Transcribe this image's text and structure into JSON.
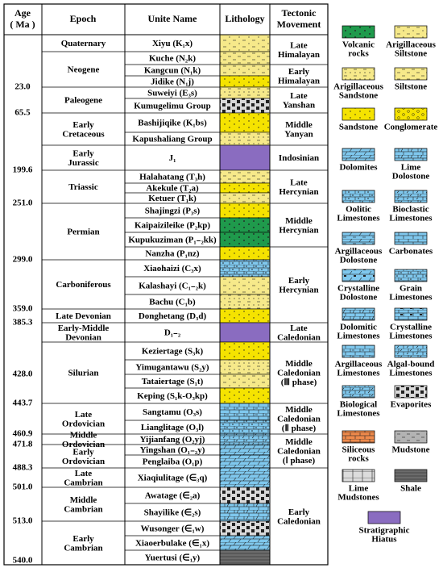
{
  "header": {
    "age": [
      "Age",
      "( Ma )"
    ],
    "epoch": "Epoch",
    "unit": "Unite Name",
    "lithology": "Lithology",
    "tectonic": [
      "Tectonic",
      "Movement"
    ]
  },
  "units": [
    {
      "name": "Xiyu (K₁x)",
      "lithology": 1
    },
    {
      "name": "Kuche (N₂k)",
      "lithology": 3
    },
    {
      "name": "Kangcun (N₁k)",
      "lithology": 1
    },
    {
      "name": "Jidike (N₁j)",
      "lithology": 4
    },
    {
      "name": "Suweiyi (E₃s)",
      "lithology": 2
    },
    {
      "name": "Kumugelimu Group",
      "lithology": 19
    },
    {
      "name": "Bashijiqike (K₁bs)",
      "lithology": 4
    },
    {
      "name": "Kapushaliang Group",
      "lithology": 2
    },
    {
      "name": "J₁",
      "lithology": 24
    },
    {
      "name": "Halahatang (T₃h)",
      "lithology": 3
    },
    {
      "name": "Akekule (T₂a)",
      "lithology": 4
    },
    {
      "name": "Ketuer (T₁k)",
      "lithology": 1
    },
    {
      "name": "Shajingzi (P₃s)",
      "lithology": 4
    },
    {
      "name": "Kaipaizileike (P₂kp)",
      "lithology": 0
    },
    {
      "name": "Kupukuziman (P₁₋₂kk)",
      "lithology": 0
    },
    {
      "name": "Nanzha (P₁nz)",
      "lithology": 4
    },
    {
      "name": "Xiaohaizi (C₃x)",
      "lithology": 8
    },
    {
      "name": "Kalashayi (C₁₋₂k)",
      "lithology": 1
    },
    {
      "name": "Bachu (C₁b)",
      "lithology": 2
    },
    {
      "name": "Donghetang (D₃d)",
      "lithology": 4
    },
    {
      "name": "D₁₋₂",
      "lithology": 24
    },
    {
      "name": "Keziertage (S₃k)",
      "lithology": 4
    },
    {
      "name": "Yimugantawu (S₂y)",
      "lithology": 2
    },
    {
      "name": "Tataiertage (S₁t)",
      "lithology": 1
    },
    {
      "name": "Keping (S₁k-O₃kp)",
      "lithology": 4
    },
    {
      "name": "Sangtamu (O₃s)",
      "lithology": 16
    },
    {
      "name": "Lianglitage (O₃l)",
      "lithology": 8
    },
    {
      "name": "Yijianfang (O₂yj)",
      "lithology": 9
    },
    {
      "name": "Yingshan (O₁₋₂y)",
      "lithology": 6
    },
    {
      "name": "Penglaiba (O₁p)",
      "lithology": 6
    },
    {
      "name": "Xiaqiulitage (∈₃q)",
      "lithology": 6
    },
    {
      "name": "Awatage (∈₂a)",
      "lithology": 19
    },
    {
      "name": "Shayilike (∈₂s)",
      "lithology": 7
    },
    {
      "name": "Wusonger (∈₁w)",
      "lithology": 19
    },
    {
      "name": "Xiaoerbulake (∈₁x)",
      "lithology": 6
    },
    {
      "name": "Yuertusi (∈₁y)",
      "lithology": 23
    }
  ],
  "epochs": [
    {
      "lines": [
        "Quaternary"
      ],
      "from": 0,
      "to": 0
    },
    {
      "lines": [
        "Neogene"
      ],
      "from": 1,
      "to": 3
    },
    {
      "lines": [
        "Paleogene"
      ],
      "from": 4,
      "to": 5
    },
    {
      "lines": [
        "Early",
        "Cretaceous"
      ],
      "from": 6,
      "to": 7
    },
    {
      "lines": [
        "Early",
        "Jurassic"
      ],
      "from": 8,
      "to": 8
    },
    {
      "lines": [
        "Triassic"
      ],
      "from": 9,
      "to": 11
    },
    {
      "lines": [
        "Permian"
      ],
      "from": 12,
      "to": 15
    },
    {
      "lines": [
        "Carboniferous"
      ],
      "from": 16,
      "to": 18
    },
    {
      "lines": [
        "Late Devonian"
      ],
      "from": 19,
      "to": 19
    },
    {
      "lines": [
        "Early-Middle",
        "Devonian"
      ],
      "from": 20,
      "to": 20
    },
    {
      "lines": [
        "Silurian"
      ],
      "from": 21,
      "to": 24
    },
    {
      "lines": [
        "Late",
        "Ordovician"
      ],
      "from": 25,
      "to": 26
    },
    {
      "lines": [
        "Middle",
        "Ordovician"
      ],
      "from": 27,
      "to": 27
    },
    {
      "lines": [
        "Early",
        "Ordovician"
      ],
      "from": 28,
      "to": 29
    },
    {
      "lines": [
        "Late",
        "Cambrian"
      ],
      "from": 30,
      "to": 30
    },
    {
      "lines": [
        "Middle",
        "Cambrian"
      ],
      "from": 31,
      "to": 32
    },
    {
      "lines": [
        "Early",
        "Cambrian"
      ],
      "from": 33,
      "to": 35
    }
  ],
  "tectonics": [
    {
      "lines": [
        "Late",
        "Himalayan"
      ],
      "from": 0,
      "to": 1
    },
    {
      "lines": [
        "Early",
        "Himalayan"
      ],
      "from": 2,
      "to": 3
    },
    {
      "lines": [
        "Late",
        "Yanshan"
      ],
      "from": 4,
      "to": 5
    },
    {
      "lines": [
        "Middle",
        "Yanyan"
      ],
      "from": 6,
      "to": 7
    },
    {
      "lines": [
        "Indosinian"
      ],
      "from": 8,
      "to": 8
    },
    {
      "lines": [
        "Late",
        "Hercynian"
      ],
      "from": 9,
      "to": 11
    },
    {
      "lines": [
        "Middle",
        "Hercynian"
      ],
      "from": 12,
      "to": 14
    },
    {
      "lines": [
        "Early",
        "Hercynian"
      ],
      "from": 15,
      "to": 19
    },
    {
      "lines": [
        "Late",
        "Caledonian"
      ],
      "from": 20,
      "to": 20
    },
    {
      "lines": [
        "Middle",
        "Caledonian",
        "(Ⅲ phase)"
      ],
      "from": 21,
      "to": 24
    },
    {
      "lines": [
        "Middle",
        "Caledonian",
        "(Ⅱ phase)"
      ],
      "from": 25,
      "to": 26
    },
    {
      "lines": [
        "Middle",
        "Caledonian",
        "(Ⅰ phase)"
      ],
      "from": 27,
      "to": 29
    },
    {
      "lines": [
        "Early",
        "Caledonian"
      ],
      "from": 30,
      "to": 35
    }
  ],
  "ages": [
    {
      "label": "23.0",
      "at": 4
    },
    {
      "label": "65.5",
      "at": 6
    },
    {
      "label": "199.6",
      "at": 9
    },
    {
      "label": "251.0",
      "at": 12
    },
    {
      "label": "299.0",
      "at": 16
    },
    {
      "label": "359.0",
      "at": 19
    },
    {
      "label": "385.3",
      "at": 20
    },
    {
      "label": "428.0",
      "at": 23
    },
    {
      "label": "443.7",
      "at": 25
    },
    {
      "label": "460.9",
      "at": 27
    },
    {
      "label": "471.8",
      "at": 28
    },
    {
      "label": "488.3",
      "at": 30
    },
    {
      "label": "501.0",
      "at": 31
    },
    {
      "label": "513.0",
      "at": 33
    },
    {
      "label": "540.0",
      "at": 36
    }
  ],
  "legend": [
    {
      "lines": [
        "Volcanic",
        "rocks"
      ],
      "color": "#1f9a4c",
      "pattern": "cross"
    },
    {
      "lines": [
        "Arigillaceous",
        "Siltstone"
      ],
      "color": "#f6e98a",
      "pattern": "dashdot"
    },
    {
      "lines": [
        "Arigillaceous",
        "Sandstone"
      ],
      "color": "#f6e98a",
      "pattern": "dotdash"
    },
    {
      "lines": [
        "Siltstone"
      ],
      "color": "#f6e98a",
      "pattern": "dash"
    },
    {
      "lines": [
        "Sandstone"
      ],
      "color": "#f5e300",
      "pattern": "dots"
    },
    {
      "lines": [
        "Conglomerate"
      ],
      "color": "#f5e300",
      "pattern": "circles"
    },
    {
      "lines": [
        "Dolomites"
      ],
      "color": "#7fc8ee",
      "pattern": "slash"
    },
    {
      "lines": [
        "Lime",
        "Dolostone"
      ],
      "color": "#7fc8ee",
      "pattern": "brickslash"
    },
    {
      "lines": [
        "Oolitic",
        "Limestones"
      ],
      "color": "#7fc8ee",
      "pattern": "brickdot"
    },
    {
      "lines": [
        "Bioclastic",
        "Limestones"
      ],
      "color": "#7fc8ee",
      "pattern": "brickbio"
    },
    {
      "lines": [
        "Argillaceous",
        "Dolostone"
      ],
      "color": "#7fc8ee",
      "pattern": "slashdash"
    },
    {
      "lines": [
        "Carbonates"
      ],
      "color": "#7fc8ee",
      "pattern": "brick"
    },
    {
      "lines": [
        "Crystalline",
        "Dolostone"
      ],
      "color": "#7fc8ee",
      "pattern": "slashblock"
    },
    {
      "lines": [
        "Grain",
        "Limestones"
      ],
      "color": "#7fc8ee",
      "pattern": "brickdot"
    },
    {
      "lines": [
        "Dolomitic",
        "Limestones"
      ],
      "color": "#7fc8ee",
      "pattern": "brickslash"
    },
    {
      "lines": [
        "Crystalline",
        "Limestones"
      ],
      "color": "#7fc8ee",
      "pattern": "brickblock"
    },
    {
      "lines": [
        "Argillaceous",
        "Limestones"
      ],
      "color": "#7fc8ee",
      "pattern": "brickdash"
    },
    {
      "lines": [
        "Algal-bound",
        "Limestones"
      ],
      "color": "#7fc8ee",
      "pattern": "brickbio"
    },
    {
      "lines": [
        "Biological",
        "Limestones"
      ],
      "color": "#7fc8ee",
      "pattern": "brickbio"
    },
    {
      "lines": [
        "Evaporites"
      ],
      "color": "#d9d9d9",
      "pattern": "blocks"
    },
    {
      "lines": [
        "Siliceous",
        "rocks"
      ],
      "color": "#f08a4b",
      "pattern": "brick"
    },
    {
      "lines": [
        "Mudstone"
      ],
      "color": "#b3b3b3",
      "pattern": "dash"
    },
    {
      "lines": [
        "Lime",
        "Mudstones"
      ],
      "color": "#dcdcdc",
      "pattern": "limemud"
    },
    {
      "lines": [
        "Shale"
      ],
      "color": "#6b6b6b",
      "pattern": "hline"
    },
    {
      "lines": [
        "Stratigraphic",
        "Hiatus"
      ],
      "color": "#8a6cc0",
      "pattern": "plain"
    }
  ]
}
